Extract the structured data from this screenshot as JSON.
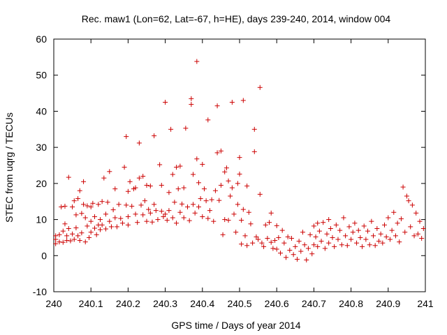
{
  "chart_data": {
    "type": "scatter",
    "title": "Rec. maw1 (Lon=62, Lat=-67, h=HE), days 239-240, 2014, window 004",
    "xlabel": "GPS time / Days of year 2014",
    "ylabel": "STEC from uqrg / TECUs",
    "xlim": [
      240,
      241
    ],
    "ylim": [
      -10,
      60
    ],
    "x_ticks": [
      "240",
      "240.1",
      "240.2",
      "240.3",
      "240.4",
      "240.5",
      "240.6",
      "240.7",
      "240.8",
      "240.9",
      "241"
    ],
    "x_tick_values": [
      240,
      240.1,
      240.2,
      240.3,
      240.4,
      240.5,
      240.6,
      240.7,
      240.8,
      240.9,
      241
    ],
    "y_ticks": [
      "-10",
      "0",
      "10",
      "20",
      "30",
      "40",
      "50",
      "60"
    ],
    "y_tick_values": [
      -10,
      0,
      10,
      20,
      30,
      40,
      50,
      60
    ],
    "grid": false,
    "marker": "plus",
    "color": "#cc0000",
    "series": [
      {
        "name": "",
        "points": [
          [
            240.005,
            5.5
          ],
          [
            240.005,
            4.5
          ],
          [
            240.005,
            3.3
          ],
          [
            240.015,
            5.8
          ],
          [
            240.015,
            3.8
          ],
          [
            240.02,
            13.5
          ],
          [
            240.025,
            6.8
          ],
          [
            240.025,
            3.7
          ],
          [
            240.03,
            13.7
          ],
          [
            240.03,
            8.8
          ],
          [
            240.035,
            5.5
          ],
          [
            240.035,
            4.2
          ],
          [
            240.04,
            21.7
          ],
          [
            240.04,
            7.5
          ],
          [
            240.045,
            4.1
          ],
          [
            240.05,
            13.5
          ],
          [
            240.05,
            6.0
          ],
          [
            240.055,
            15.2
          ],
          [
            240.055,
            4.5
          ],
          [
            240.06,
            11.3
          ],
          [
            240.06,
            7.7
          ],
          [
            240.065,
            15.8
          ],
          [
            240.065,
            5.5
          ],
          [
            240.07,
            18.0
          ],
          [
            240.07,
            4.2
          ],
          [
            240.075,
            11.7
          ],
          [
            240.075,
            6.3
          ],
          [
            240.08,
            14.2
          ],
          [
            240.08,
            20.5
          ],
          [
            240.085,
            10.5
          ],
          [
            240.085,
            3.8
          ],
          [
            240.09,
            8.2
          ],
          [
            240.09,
            13.8
          ],
          [
            240.095,
            5.0
          ],
          [
            240.1,
            13.5
          ],
          [
            240.1,
            9.5
          ],
          [
            240.1,
            6.5
          ],
          [
            240.105,
            14.5
          ],
          [
            240.11,
            7.6
          ],
          [
            240.11,
            10.8
          ],
          [
            240.115,
            5.8
          ],
          [
            240.12,
            8.5
          ],
          [
            240.12,
            14.2
          ],
          [
            240.125,
            7.2
          ],
          [
            240.125,
            10.0
          ],
          [
            240.13,
            15.0
          ],
          [
            240.13,
            8.5
          ],
          [
            240.135,
            21.5
          ],
          [
            240.14,
            7.4
          ],
          [
            240.14,
            11.5
          ],
          [
            240.145,
            14.8
          ],
          [
            240.15,
            23.3
          ],
          [
            240.15,
            9.5
          ],
          [
            240.155,
            8.0
          ],
          [
            240.16,
            12.7
          ],
          [
            240.165,
            18.5
          ],
          [
            240.165,
            10.5
          ],
          [
            240.17,
            8.0
          ],
          [
            240.175,
            14.2
          ],
          [
            240.18,
            10.3
          ],
          [
            240.185,
            9.0
          ],
          [
            240.19,
            24.5
          ],
          [
            240.195,
            33.0
          ],
          [
            240.195,
            14.0
          ],
          [
            240.2,
            17.8
          ],
          [
            240.2,
            10.8
          ],
          [
            240.2,
            8.5
          ],
          [
            240.205,
            20.5
          ],
          [
            240.21,
            13.7
          ],
          [
            240.215,
            18.5
          ],
          [
            240.22,
            18.8
          ],
          [
            240.22,
            11.5
          ],
          [
            240.225,
            9.2
          ],
          [
            240.23,
            31.2
          ],
          [
            240.23,
            21.5
          ],
          [
            240.235,
            14.0
          ],
          [
            240.24,
            22.0
          ],
          [
            240.24,
            11.3
          ],
          [
            240.245,
            15.2
          ],
          [
            240.25,
            19.5
          ],
          [
            240.25,
            9.5
          ],
          [
            240.255,
            12.8
          ],
          [
            240.26,
            19.3
          ],
          [
            240.26,
            11.8
          ],
          [
            240.265,
            9.3
          ],
          [
            240.27,
            33.2
          ],
          [
            240.27,
            14.2
          ],
          [
            240.275,
            12.5
          ],
          [
            240.28,
            10.0
          ],
          [
            240.285,
            25.2
          ],
          [
            240.29,
            19.5
          ],
          [
            240.29,
            12.3
          ],
          [
            240.295,
            10.8
          ],
          [
            240.3,
            42.5
          ],
          [
            240.3,
            11.5
          ],
          [
            240.305,
            9.8
          ],
          [
            240.31,
            17.5
          ],
          [
            240.31,
            12.5
          ],
          [
            240.315,
            35.0
          ],
          [
            240.32,
            22.5
          ],
          [
            240.32,
            10.5
          ],
          [
            240.325,
            14.8
          ],
          [
            240.33,
            24.5
          ],
          [
            240.33,
            9.0
          ],
          [
            240.335,
            18.5
          ],
          [
            240.34,
            24.8
          ],
          [
            240.34,
            12.0
          ],
          [
            240.345,
            14.3
          ],
          [
            240.35,
            18.8
          ],
          [
            240.35,
            10.5
          ],
          [
            240.355,
            35.3
          ],
          [
            240.36,
            13.5
          ],
          [
            240.365,
            9.7
          ],
          [
            240.37,
            43.5
          ],
          [
            240.37,
            41.9
          ],
          [
            240.375,
            22.5
          ],
          [
            240.375,
            14.2
          ],
          [
            240.38,
            11.8
          ],
          [
            240.385,
            53.8
          ],
          [
            240.385,
            26.8
          ],
          [
            240.39,
            20.2
          ],
          [
            240.39,
            13.5
          ],
          [
            240.395,
            15.8
          ],
          [
            240.4,
            25.3
          ],
          [
            240.4,
            10.8
          ],
          [
            240.405,
            18.5
          ],
          [
            240.41,
            15.2
          ],
          [
            240.415,
            37.6
          ],
          [
            240.415,
            10.3
          ],
          [
            240.42,
            12.5
          ],
          [
            240.425,
            15.5
          ],
          [
            240.43,
            9.5
          ],
          [
            240.435,
            18.0
          ],
          [
            240.44,
            41.5
          ],
          [
            240.44,
            28.5
          ],
          [
            240.445,
            15.3
          ],
          [
            240.45,
            29.0
          ],
          [
            240.45,
            19.5
          ],
          [
            240.455,
            5.8
          ],
          [
            240.46,
            23.2
          ],
          [
            240.46,
            10.0
          ],
          [
            240.465,
            24.3
          ],
          [
            240.47,
            20.7
          ],
          [
            240.47,
            9.8
          ],
          [
            240.475,
            16.5
          ],
          [
            240.48,
            42.5
          ],
          [
            240.48,
            18.8
          ],
          [
            240.485,
            11.5
          ],
          [
            240.49,
            6.5
          ],
          [
            240.495,
            20.0
          ],
          [
            240.495,
            14.2
          ],
          [
            240.5,
            27.2
          ],
          [
            240.5,
            22.6
          ],
          [
            240.505,
            9.8
          ],
          [
            240.505,
            3.2
          ],
          [
            240.51,
            43.0
          ],
          [
            240.51,
            12.8
          ],
          [
            240.515,
            5.5
          ],
          [
            240.52,
            19.3
          ],
          [
            240.52,
            2.8
          ],
          [
            240.525,
            12.0
          ],
          [
            240.53,
            8.8
          ],
          [
            240.535,
            3.5
          ],
          [
            240.54,
            35.0
          ],
          [
            240.54,
            28.8
          ],
          [
            240.545,
            5.2
          ],
          [
            240.55,
            4.5
          ],
          [
            240.555,
            46.6
          ],
          [
            240.555,
            17.0
          ],
          [
            240.56,
            3.5
          ],
          [
            240.565,
            2.5
          ],
          [
            240.57,
            8.5
          ],
          [
            240.575,
            4.8
          ],
          [
            240.58,
            9.2
          ],
          [
            240.585,
            11.8
          ],
          [
            240.585,
            3.7
          ],
          [
            240.59,
            2.0
          ],
          [
            240.595,
            4.2
          ],
          [
            240.6,
            8.3
          ],
          [
            240.6,
            1.8
          ],
          [
            240.605,
            5.0
          ],
          [
            240.61,
            0.7
          ],
          [
            240.615,
            7.0
          ],
          [
            240.62,
            3.5
          ],
          [
            240.625,
            -0.5
          ],
          [
            240.63,
            5.2
          ],
          [
            240.635,
            1.5
          ],
          [
            240.64,
            4.8
          ],
          [
            240.645,
            0.3
          ],
          [
            240.65,
            2.5
          ],
          [
            240.655,
            -1.0
          ],
          [
            240.66,
            4.0
          ],
          [
            240.665,
            1.2
          ],
          [
            240.67,
            6.5
          ],
          [
            240.675,
            3.0
          ],
          [
            240.68,
            -1.2
          ],
          [
            240.685,
            2.0
          ],
          [
            240.69,
            5.8
          ],
          [
            240.695,
            0.5
          ],
          [
            240.7,
            8.2
          ],
          [
            240.7,
            3.0
          ],
          [
            240.705,
            5.2
          ],
          [
            240.71,
            9.0
          ],
          [
            240.71,
            2.5
          ],
          [
            240.715,
            6.8
          ],
          [
            240.72,
            4.0
          ],
          [
            240.725,
            9.2
          ],
          [
            240.73,
            2.0
          ],
          [
            240.735,
            6.0
          ],
          [
            240.74,
            10.0
          ],
          [
            240.74,
            3.5
          ],
          [
            240.745,
            7.5
          ],
          [
            240.75,
            5.0
          ],
          [
            240.755,
            2.5
          ],
          [
            240.76,
            8.5
          ],
          [
            240.765,
            4.5
          ],
          [
            240.77,
            7.0
          ],
          [
            240.775,
            3.0
          ],
          [
            240.78,
            10.5
          ],
          [
            240.785,
            5.5
          ],
          [
            240.79,
            2.8
          ],
          [
            240.795,
            8.0
          ],
          [
            240.8,
            4.5
          ],
          [
            240.805,
            6.5
          ],
          [
            240.81,
            9.0
          ],
          [
            240.815,
            3.5
          ],
          [
            240.82,
            7.0
          ],
          [
            240.825,
            5.0
          ],
          [
            240.83,
            2.5
          ],
          [
            240.835,
            8.2
          ],
          [
            240.84,
            4.5
          ],
          [
            240.845,
            6.8
          ],
          [
            240.85,
            3.0
          ],
          [
            240.855,
            9.5
          ],
          [
            240.86,
            5.5
          ],
          [
            240.865,
            2.8
          ],
          [
            240.87,
            7.5
          ],
          [
            240.875,
            4.0
          ],
          [
            240.88,
            6.0
          ],
          [
            240.885,
            3.5
          ],
          [
            240.89,
            8.5
          ],
          [
            240.895,
            5.2
          ],
          [
            240.9,
            10.5
          ],
          [
            240.905,
            4.5
          ],
          [
            240.91,
            7.0
          ],
          [
            240.915,
            12.0
          ],
          [
            240.92,
            5.5
          ],
          [
            240.925,
            9.0
          ],
          [
            240.93,
            3.8
          ],
          [
            240.935,
            10.2
          ],
          [
            240.94,
            19.0
          ],
          [
            240.945,
            6.5
          ],
          [
            240.95,
            16.5
          ],
          [
            240.955,
            15.2
          ],
          [
            240.96,
            8.0
          ],
          [
            240.965,
            14.0
          ],
          [
            240.97,
            5.5
          ],
          [
            240.975,
            11.8
          ],
          [
            240.98,
            6.0
          ],
          [
            240.985,
            9.5
          ],
          [
            240.99,
            4.8
          ],
          [
            240.995,
            7.5
          ]
        ]
      }
    ]
  }
}
